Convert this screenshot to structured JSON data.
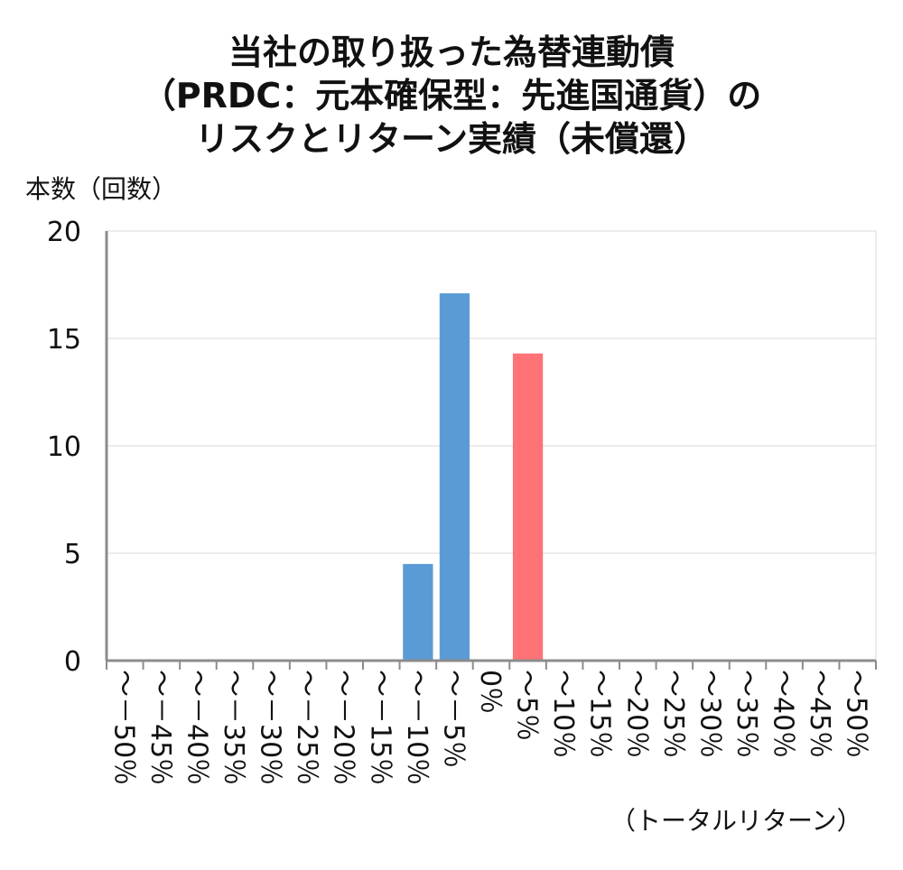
{
  "chart_data": {
    "type": "bar",
    "title_lines": [
      "当社の取り扱った為替連動債",
      "（PRDC：元本確保型：先進国通貨）の",
      "リスクとリターン実績（未償還）"
    ],
    "ylabel": "本数（回数）",
    "xlabel": "（トータルリターン）",
    "ylim": [
      0,
      20
    ],
    "yticks": [
      "0",
      "5",
      "10",
      "15",
      "20"
    ],
    "ytick_values": [
      0,
      5,
      10,
      15,
      20
    ],
    "grid": true,
    "categories": [
      "～－50％",
      "～－45％",
      "～－40％",
      "～－35％",
      "～－30％",
      "～－25％",
      "～－20％",
      "～－15％",
      "～－10％",
      "～－5％",
      "0％",
      "～5％",
      "～10％",
      "～15％",
      "～20％",
      "～25％",
      "～30％",
      "～35％",
      "～40％",
      "～45％",
      "～50％"
    ],
    "values": [
      0,
      0,
      0,
      0,
      0,
      0,
      0,
      0,
      4.5,
      17.1,
      0,
      14.3,
      0,
      0,
      0,
      0,
      0,
      0,
      0,
      0,
      0
    ],
    "colors": {
      "negative": "#5b9bd5",
      "positive": "#ff7276",
      "grid": "#d9d9d9",
      "axis": "#8c8c8c"
    }
  }
}
